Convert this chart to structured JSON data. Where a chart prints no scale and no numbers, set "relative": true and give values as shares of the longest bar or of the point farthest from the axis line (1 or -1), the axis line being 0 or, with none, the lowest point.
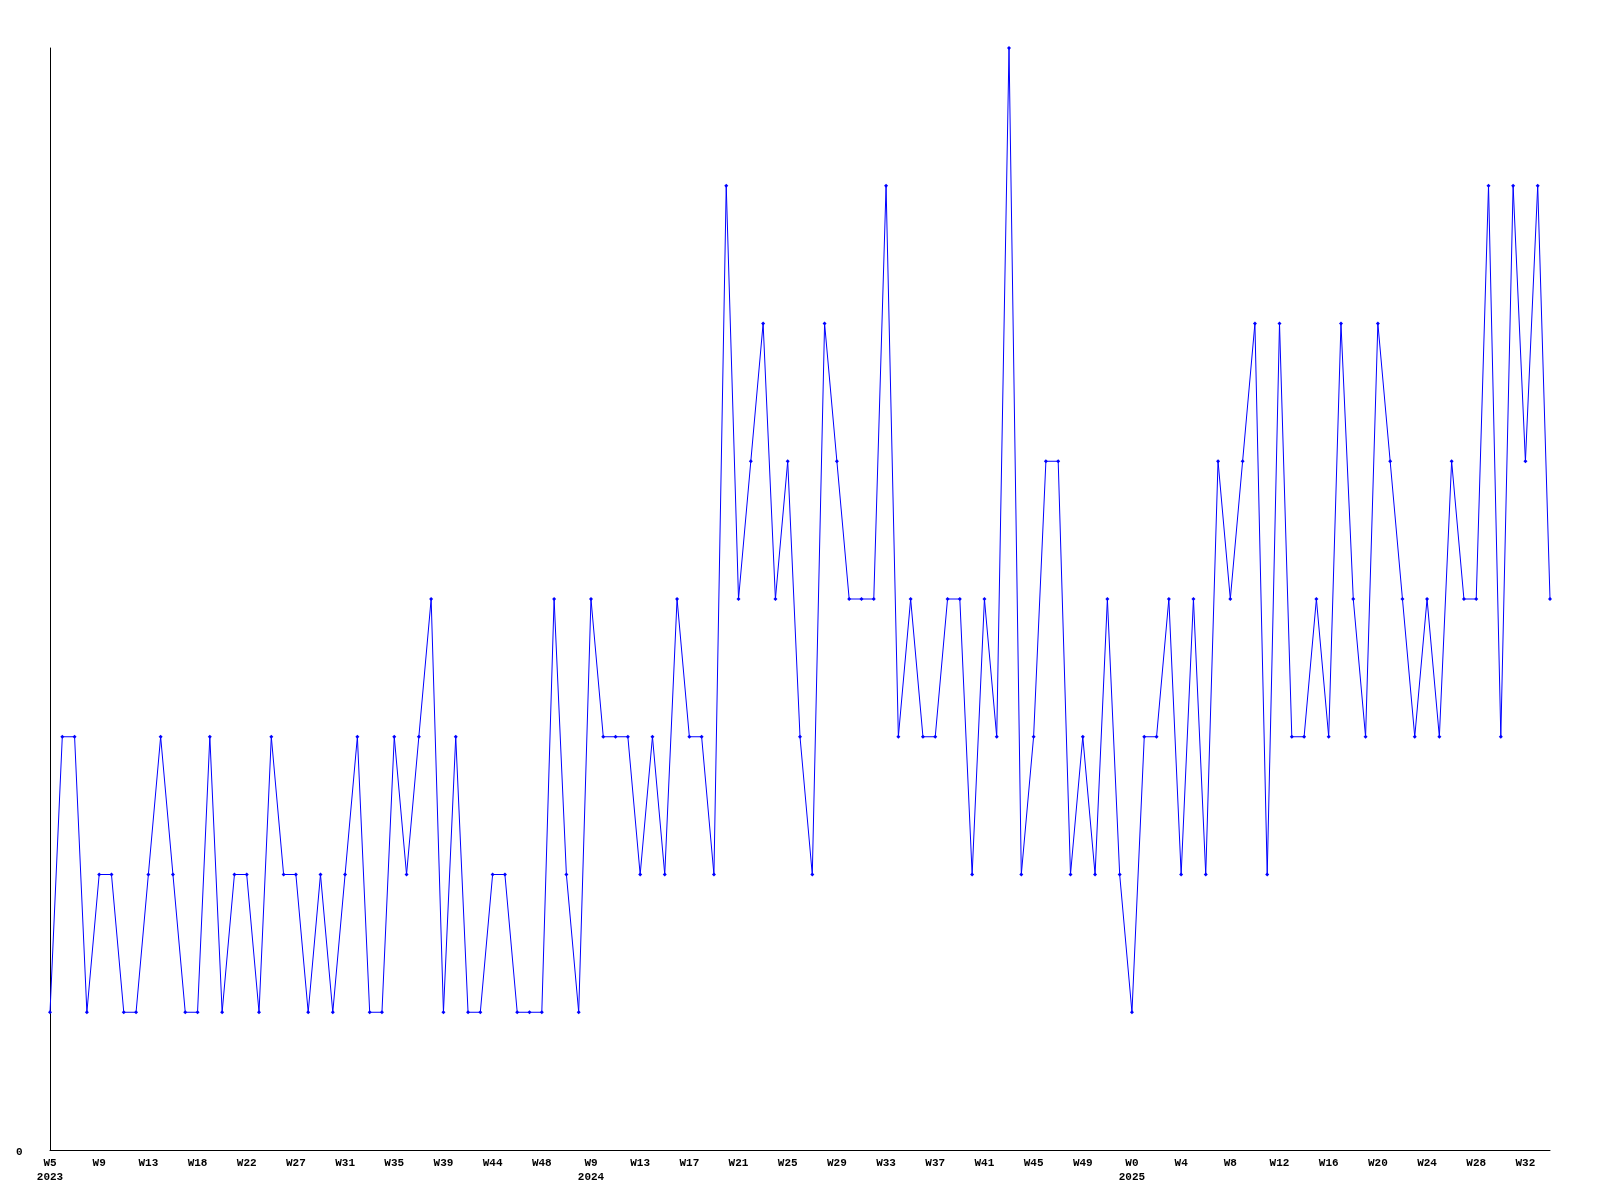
{
  "chart_data": {
    "type": "line",
    "relative": true,
    "categories": [
      "W5\n2023",
      null,
      null,
      null,
      "W9",
      null,
      null,
      null,
      "W13",
      null,
      null,
      null,
      "W18",
      null,
      null,
      null,
      "W22",
      null,
      null,
      null,
      "W27",
      null,
      null,
      null,
      "W31",
      null,
      null,
      null,
      "W35",
      null,
      null,
      null,
      "W39",
      null,
      null,
      null,
      "W44",
      null,
      null,
      null,
      "W48",
      null,
      null,
      null,
      "W9\n2024",
      null,
      null,
      null,
      "W13",
      null,
      null,
      null,
      "W17",
      null,
      null,
      null,
      "W21",
      null,
      null,
      null,
      "W25",
      null,
      null,
      null,
      "W29",
      null,
      null,
      null,
      "W33",
      null,
      null,
      null,
      "W37",
      null,
      null,
      null,
      "W41",
      null,
      null,
      null,
      "W45",
      null,
      null,
      null,
      "W49",
      null,
      null,
      null,
      "W0\n2025",
      null,
      null,
      null,
      "W4",
      null,
      null,
      null,
      "W8",
      null,
      null,
      null,
      "W12",
      null,
      null,
      null,
      "W16",
      null,
      null,
      null,
      "W20",
      null,
      null,
      null,
      "W24",
      null,
      null,
      null,
      "W28",
      null,
      null,
      null,
      "W32",
      null,
      null
    ],
    "series": [
      {
        "color": "#0000ff",
        "values": [
          0.125,
          0.375,
          0.375,
          0.125,
          0.25,
          0.25,
          0.125,
          0.125,
          0.25,
          0.375,
          0.25,
          0.125,
          0.125,
          0.375,
          0.125,
          0.25,
          0.25,
          0.125,
          0.375,
          0.25,
          0.25,
          0.125,
          0.25,
          0.125,
          0.25,
          0.375,
          0.125,
          0.125,
          0.375,
          0.25,
          0.375,
          0.5,
          0.125,
          0.375,
          0.125,
          0.125,
          0.25,
          0.25,
          0.125,
          0.125,
          0.125,
          0.5,
          0.25,
          0.125,
          0.5,
          0.375,
          0.375,
          0.375,
          0.25,
          0.375,
          0.25,
          0.5,
          0.375,
          0.375,
          0.25,
          0.875,
          0.5,
          0.625,
          0.75,
          0.5,
          0.625,
          0.375,
          0.25,
          0.75,
          0.625,
          0.5,
          0.5,
          0.5,
          0.875,
          0.375,
          0.5,
          0.375,
          0.375,
          0.5,
          0.5,
          0.25,
          0.5,
          0.375,
          1,
          0.25,
          0.375,
          0.625,
          0.625,
          0.25,
          0.375,
          0.25,
          0.5,
          0.25,
          0.125,
          0.375,
          0.375,
          0.5,
          0.25,
          0.5,
          0.25,
          0.625,
          0.5,
          0.625,
          0.75,
          0.25,
          0.75,
          0.375,
          0.375,
          0.5,
          0.375,
          0.75,
          0.5,
          0.375,
          0.75,
          0.625,
          0.5,
          0.375,
          0.5,
          0.375,
          0.625,
          0.5,
          0.5,
          0.875,
          0.375,
          0.875,
          0.625,
          0.875,
          0.5
        ]
      }
    ],
    "marker": "diamond",
    "grid": false,
    "annotations": [
      "0"
    ]
  }
}
